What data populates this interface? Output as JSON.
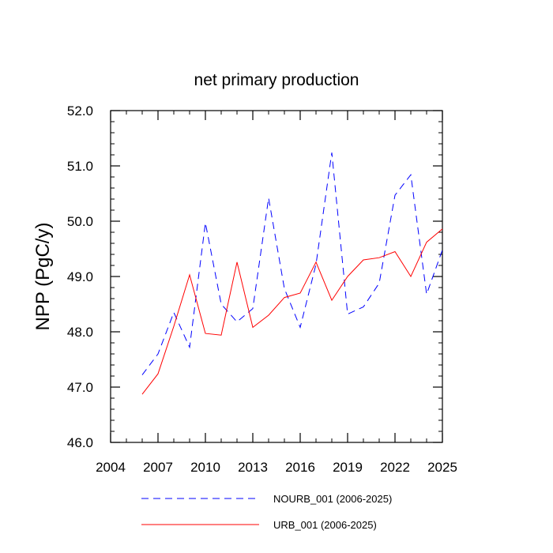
{
  "chart_data": {
    "type": "line",
    "title": "net primary production",
    "xlabel": "",
    "ylabel": "NPP  (PgC/y)",
    "xlim": [
      2004,
      2025
    ],
    "ylim": [
      46.0,
      52.0
    ],
    "x_ticks": [
      2004,
      2007,
      2010,
      2013,
      2016,
      2019,
      2022,
      2025
    ],
    "x_tick_labels": [
      "2004",
      "2007",
      "2010",
      "2013",
      "2016",
      "2019",
      "2022",
      "2025"
    ],
    "y_ticks": [
      46.0,
      47.0,
      48.0,
      49.0,
      50.0,
      51.0,
      52.0
    ],
    "y_tick_labels": [
      "46.0",
      "47.0",
      "48.0",
      "49.0",
      "50.0",
      "51.0",
      "52.0"
    ],
    "grid": false,
    "legend_position": "bottom",
    "x": [
      2006,
      2007,
      2008,
      2009,
      2010,
      2011,
      2012,
      2013,
      2014,
      2015,
      2016,
      2017,
      2018,
      2019,
      2020,
      2021,
      2022,
      2023,
      2024,
      2025
    ],
    "series": [
      {
        "name": "NOURB_001 (2006-2025)",
        "color": "#0000ff",
        "line_style": "dashed",
        "values": [
          47.22,
          47.6,
          48.35,
          47.72,
          49.97,
          48.5,
          48.18,
          48.42,
          50.42,
          48.78,
          48.08,
          49.22,
          51.24,
          48.32,
          48.45,
          48.88,
          50.47,
          50.84,
          48.68,
          49.48
        ]
      },
      {
        "name": "URB_001 (2006-2025)",
        "color": "#ff0000",
        "line_style": "solid",
        "values": [
          46.87,
          47.24,
          48.1,
          49.03,
          47.97,
          47.94,
          49.26,
          48.08,
          48.3,
          48.62,
          48.7,
          49.26,
          48.57,
          49.0,
          49.3,
          49.34,
          49.45,
          49.0,
          49.62,
          49.86
        ]
      }
    ]
  }
}
